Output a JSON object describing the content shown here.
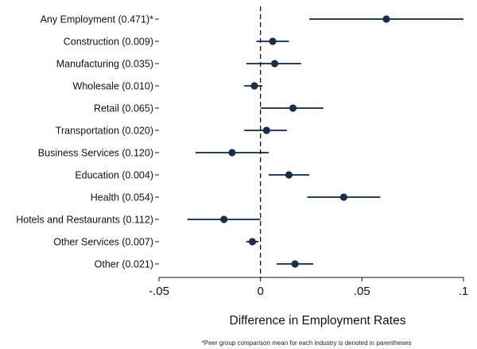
{
  "chart_data": {
    "type": "scatter",
    "subtype": "coefficient-plot-with-confidence-intervals",
    "orientation": "horizontal",
    "categories": [
      "Any Employment (0.471)*",
      "Construction (0.009)",
      "Manufacturing (0.035)",
      "Wholesale (0.010)",
      "Retail (0.065)",
      "Transportation (0.020)",
      "Business Services (0.120)",
      "Education (0.004)",
      "Health (0.054)",
      "Hotels and Restaurants (0.112)",
      "Other Services (0.007)",
      "Other (0.021)"
    ],
    "estimates": [
      0.062,
      0.006,
      0.007,
      -0.003,
      0.016,
      0.003,
      -0.014,
      0.014,
      0.041,
      -0.018,
      -0.004,
      0.017
    ],
    "ci_low": [
      0.024,
      -0.002,
      -0.007,
      -0.008,
      0.0,
      -0.008,
      -0.032,
      0.004,
      0.023,
      -0.036,
      -0.007,
      0.008
    ],
    "ci_high": [
      0.1,
      0.014,
      0.02,
      0.001,
      0.031,
      0.013,
      0.004,
      0.024,
      0.059,
      0.0,
      -0.001,
      0.026
    ],
    "xlim": [
      -0.05,
      0.1
    ],
    "xticks": [
      -0.05,
      0,
      0.05,
      0.1
    ],
    "xtick_labels": [
      "-.05",
      "0",
      ".05",
      ".1"
    ],
    "xlabel": "Difference in Employment Rates",
    "reference_line": 0,
    "reference_line_style": "dashed",
    "grid": false,
    "note": "*Peer group comparison mean for each industry is denoted in parentheses",
    "colors": {
      "marker": "#1a2e4a",
      "ci": "#2a4060",
      "axis": "#111111"
    }
  }
}
